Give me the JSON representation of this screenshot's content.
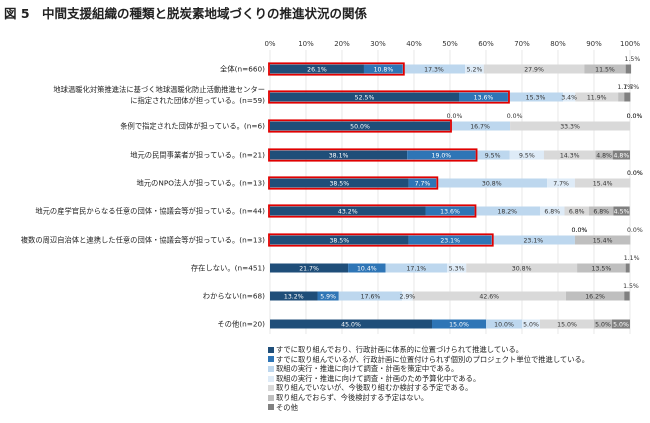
{
  "figure_title": "図 5　中間支援組織の種類と脱炭素地域づくりの推進状況の関係",
  "colors": {
    "s1": "#1f4e79",
    "s2": "#2e75b6",
    "s3": "#bdd7ee",
    "s4": "#deebf7",
    "s5": "#d9d9d9",
    "s6": "#bfbfbf",
    "s7": "#808080",
    "highlight": "#e00000"
  },
  "chart_data": {
    "type": "bar",
    "orientation": "horizontal",
    "stacked": true,
    "percent": true,
    "x_ticks": [
      "0%",
      "10%",
      "20%",
      "30%",
      "40%",
      "50%",
      "60%",
      "70%",
      "80%",
      "90%",
      "100%"
    ],
    "xlim": [
      0,
      100
    ],
    "legend_position": "bottom",
    "categories": [
      "全体(n=660)",
      "地球温暖化対策推進法に基づく地球温暖化防止活動推進センター\nに指定された団体が担っている。(n=59)",
      "条例で指定された団体が担っている。(n=6)",
      "地元の民間事業者が担っている。(n=21)",
      "地元のNPO法人が担っている。(n=13)",
      "地元の産学官民からなる任意の団体・協議会等が担っている。(n=44)",
      "複数の周辺自治体と連携した任意の団体・協議会等が担っている。(n=13)",
      "存在しない。(n=451)",
      "わからない(n=68)",
      "その他(n=20)"
    ],
    "highlighted_rows": [
      0,
      1,
      2,
      3,
      4,
      5,
      6
    ],
    "series": [
      {
        "name": "すでに取り組んでおり、行政計画に体系的に位置づけられて推進している。",
        "color": "#1f4e79",
        "values": [
          26.1,
          52.5,
          50.0,
          38.1,
          38.5,
          43.2,
          38.5,
          21.7,
          13.2,
          45.0
        ],
        "labels": [
          "26.1%",
          "52.5%",
          "50.0%",
          "38.1%",
          "38.5%",
          "43.2%",
          "38.5%",
          "21.7%",
          "13.2%",
          "45.0%"
        ]
      },
      {
        "name": "すでに取り組んでいるが、行政計画に位置付けられず個別のプロジェクト単位で推進している。",
        "color": "#2e75b6",
        "values": [
          10.8,
          13.6,
          0.0,
          19.0,
          7.7,
          13.6,
          23.1,
          10.4,
          5.9,
          15.0
        ],
        "labels": [
          "10.8%",
          "13.6%",
          "0.0%",
          "19.0%",
          "7.7%",
          "13.6%",
          "23.1%",
          "10.4%",
          "5.9%",
          "15.0%"
        ]
      },
      {
        "name": "取組の実行・推進に向けて調査・計画を策定中である。",
        "color": "#bdd7ee",
        "values": [
          17.3,
          15.3,
          16.7,
          9.5,
          30.8,
          18.2,
          23.1,
          17.1,
          17.6,
          10.0
        ],
        "labels": [
          "17.3%",
          "15.3%",
          "16.7%",
          "9.5%",
          "30.8%",
          "18.2%",
          "23.1%",
          "17.1%",
          "17.6%",
          "10.0%"
        ]
      },
      {
        "name": "取組の実行・推進に向けて調査・計画のため予算化中である。",
        "color": "#deebf7",
        "values": [
          5.2,
          3.4,
          0.0,
          9.5,
          7.7,
          6.8,
          0.0,
          5.3,
          2.9,
          5.0
        ],
        "labels": [
          "5.2%",
          "3.4%",
          "0.0%",
          "9.5%",
          "7.7%",
          "6.8%",
          "0.0%",
          "5.3%",
          "2.9%",
          "5.0%"
        ]
      },
      {
        "name": "取り組んでいないが、今後取り組むか検討する予定である。",
        "color": "#d9d9d9",
        "values": [
          27.9,
          11.9,
          33.3,
          14.3,
          15.4,
          6.8,
          0.0,
          30.8,
          42.6,
          15.0
        ],
        "labels": [
          "27.9%",
          "11.9%",
          "33.3%",
          "14.3%",
          "15.4%",
          "6.8%",
          "0.0%",
          "30.8%",
          "42.6%",
          "15.0%"
        ]
      },
      {
        "name": "取り組んでおらず、今後検討する予定はない。",
        "color": "#bfbfbf",
        "values": [
          11.5,
          1.7,
          0.0,
          4.8,
          0.0,
          6.8,
          15.4,
          13.5,
          16.2,
          5.0
        ],
        "labels": [
          "11.5%",
          "1.7%",
          "0.0%",
          "4.8%",
          "0.0%",
          "6.8%",
          "15.4%",
          "13.5%",
          "16.2%",
          "5.0%"
        ]
      },
      {
        "name": "その他",
        "color": "#808080",
        "values": [
          1.5,
          1.7,
          0.0,
          4.8,
          0.0,
          4.5,
          0.0,
          1.1,
          1.5,
          5.0
        ],
        "labels": [
          "1.5%",
          "1.7%",
          "0.0%",
          "4.8%",
          "0.0%",
          "4.5%",
          "0.0%",
          "1.1%",
          "1.5%",
          "5.0%"
        ]
      }
    ]
  }
}
